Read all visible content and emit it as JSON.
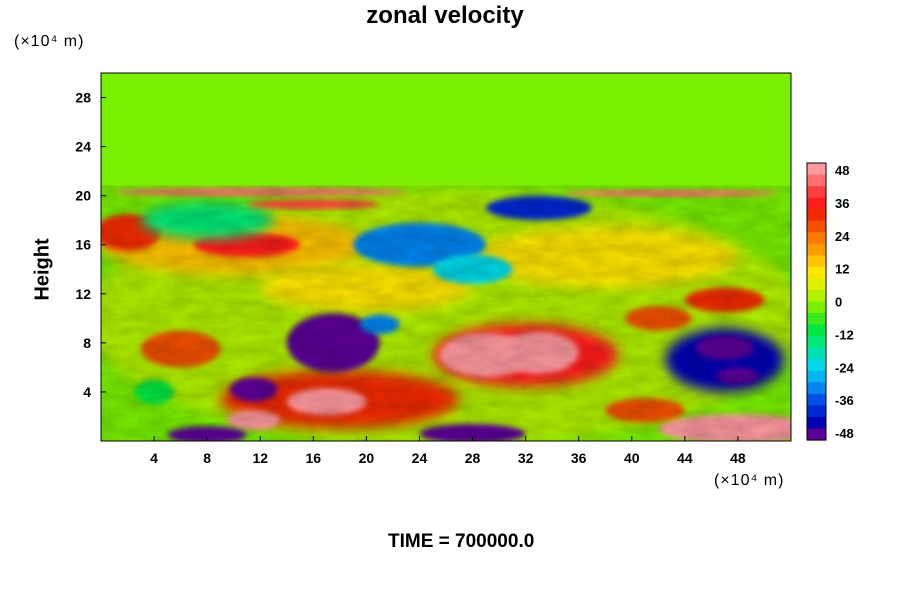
{
  "title": "zonal velocity",
  "time_label": "TIME = 700000.0",
  "chart_data": {
    "type": "heatmap",
    "title": "zonal velocity",
    "ylabel": "Height",
    "xlabel": "",
    "x_unit_label": "(×10⁴ m)",
    "y_unit_label": "(×10⁴ m)",
    "xlim": [
      0,
      52
    ],
    "ylim": [
      0,
      30
    ],
    "x_ticks": [
      4,
      8,
      12,
      16,
      20,
      24,
      28,
      32,
      36,
      40,
      44,
      48
    ],
    "y_ticks": [
      4,
      8,
      12,
      16,
      20,
      24,
      28
    ],
    "colorbar": {
      "ticks": [
        48,
        36,
        24,
        12,
        0,
        -12,
        -24,
        -36,
        -48
      ],
      "range": [
        -48,
        48
      ],
      "levels": 24,
      "colors_high_to_low": [
        "#ff9aa0",
        "#ff7070",
        "#ff4040",
        "#ff1e1e",
        "#f22a00",
        "#f25000",
        "#ff7a00",
        "#ff9c00",
        "#ffc400",
        "#ffe600",
        "#dcf000",
        "#b0f000",
        "#78f000",
        "#3ce81e",
        "#00e640",
        "#00e878",
        "#00e0b4",
        "#00d8e8",
        "#00b4f0",
        "#0084f0",
        "#0050e6",
        "#0028d2",
        "#0000b4",
        "#5a0096"
      ]
    },
    "field_summary": [
      {
        "feature": "upper layer near zero",
        "y_range": [
          21,
          30
        ],
        "value": 0
      },
      {
        "feature": "jet band near top of disturbed layer",
        "y_range": [
          19.5,
          20.5
        ],
        "value": 40
      },
      {
        "feature": "strong positive core",
        "x_range": [
          25,
          37
        ],
        "y_range": [
          5,
          9
        ],
        "value": 48
      },
      {
        "feature": "negative core",
        "x_range": [
          14,
          20
        ],
        "y_range": [
          6,
          10
        ],
        "value": -48
      },
      {
        "feature": "negative core",
        "x_range": [
          43,
          51
        ],
        "y_range": [
          4,
          9
        ],
        "value": -44
      },
      {
        "feature": "positive near-surface band",
        "x_range": [
          44,
          52
        ],
        "y_range": [
          0,
          2
        ],
        "value": 48
      }
    ]
  }
}
